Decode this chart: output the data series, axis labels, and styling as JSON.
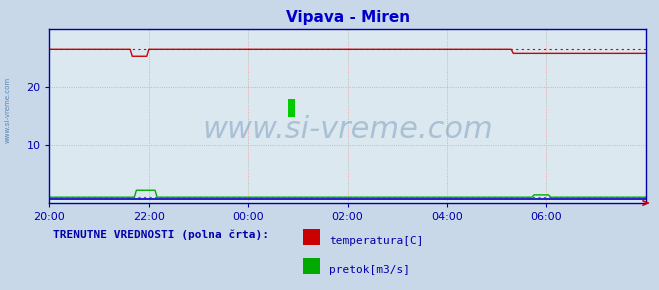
{
  "title": "Vipava - Miren",
  "title_color": "#0000cc",
  "title_fontsize": 11,
  "bg_color": "#c8d8e8",
  "plot_bg_color": "#dce8f0",
  "watermark_text": "www.si-vreme.com",
  "watermark_color": "#7799bb",
  "watermark_alpha": 0.5,
  "watermark_fontsize": 22,
  "grid_color": "#dd9999",
  "grid_linestyle": ":",
  "spine_color": "#0000aa",
  "tick_color": "#0000aa",
  "tick_fontsize": 8,
  "x_tick_labels": [
    "20:00",
    "22:00",
    "00:00",
    "02:00",
    "04:00",
    "06:00"
  ],
  "x_tick_positions": [
    0,
    24,
    48,
    72,
    96,
    120
  ],
  "ylim": [
    0,
    30
  ],
  "yticks": [
    10,
    20
  ],
  "xlim": [
    0,
    144
  ],
  "temp_color": "#cc0000",
  "flow_color": "#00aa00",
  "height_color": "#0000cc",
  "legend_title": "TRENUTNE VREDNOSTI (polna črta):",
  "legend_title_color": "#0000aa",
  "legend_title_fontsize": 8,
  "legend_items": [
    {
      "label": "temperatura[C]",
      "color": "#cc0000"
    },
    {
      "label": "pretok[m3/s]",
      "color": "#00aa00"
    }
  ],
  "legend_item_fontsize": 8,
  "legend_item_color": "#0000aa",
  "side_label": "www.si-vreme.com",
  "side_label_color": "#4477aa",
  "side_label_fontsize": 5,
  "temp_base": 26.5,
  "flow_base": 1.0,
  "height_base": 0.7,
  "n_points": 289,
  "logo_yellow": "#ffdd00",
  "logo_blue": "#0099ff",
  "logo_green": "#00cc00"
}
